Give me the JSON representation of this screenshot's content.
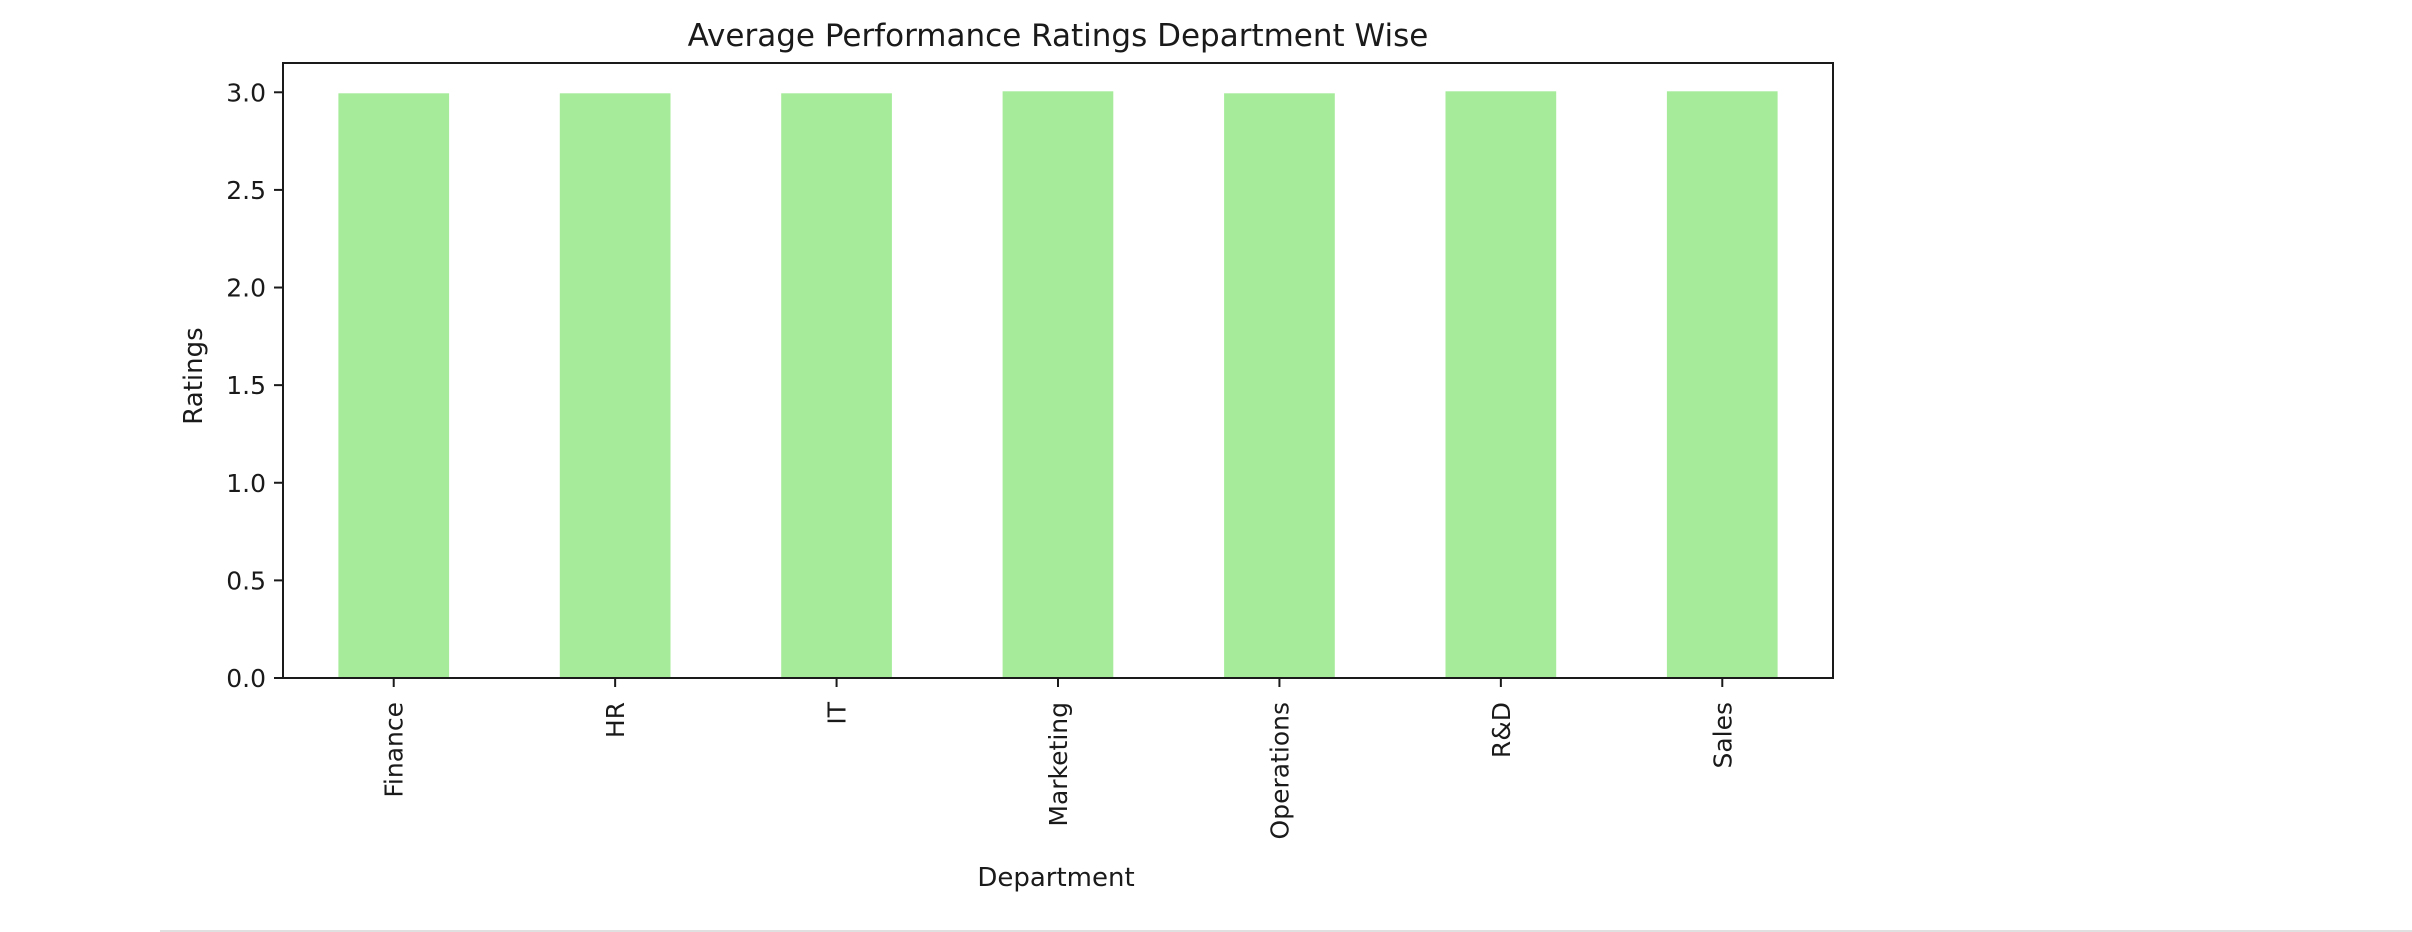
{
  "chart_data": {
    "type": "bar",
    "title": "Average Performance Ratings Department Wise",
    "xlabel": "Department",
    "ylabel": "Ratings",
    "categories": [
      "Finance",
      "HR",
      "IT",
      "Marketing",
      "Operations",
      "R&D",
      "Sales"
    ],
    "values": [
      2.995,
      2.995,
      2.995,
      3.005,
      2.995,
      3.005,
      3.005
    ],
    "ylim": [
      0,
      3.15
    ],
    "yticks": [
      "0.0",
      "0.5",
      "1.0",
      "1.5",
      "2.0",
      "2.5",
      "3.0"
    ],
    "bar_color": "#a6eb9a",
    "grid": false,
    "legend": "none"
  }
}
